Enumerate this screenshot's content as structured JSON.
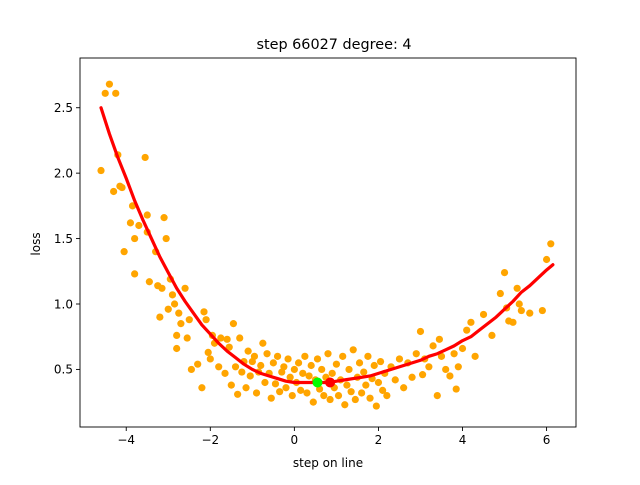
{
  "chart_data": {
    "type": "scatter",
    "title": "step 66027   degree: 4",
    "xlabel": "step on line",
    "ylabel": "loss",
    "xlim": [
      -5.1,
      6.7
    ],
    "ylim": [
      0.06,
      2.88
    ],
    "xticks": [
      -4,
      -2,
      0,
      2,
      4,
      6
    ],
    "yticks": [
      0.5,
      1.0,
      1.5,
      2.0,
      2.5
    ],
    "xtick_labels": [
      "−4",
      "−2",
      "0",
      "2",
      "4",
      "6"
    ],
    "ytick_labels": [
      "0.5",
      "1.0",
      "1.5",
      "2.0",
      "2.5"
    ],
    "grid": false,
    "legend": "none",
    "scatter_color": "#ffa500",
    "scatter_points": [
      [
        -4.6,
        2.02
      ],
      [
        -4.5,
        2.61
      ],
      [
        -4.4,
        2.68
      ],
      [
        -4.25,
        2.61
      ],
      [
        -4.2,
        2.14
      ],
      [
        -4.3,
        1.86
      ],
      [
        -4.15,
        1.9
      ],
      [
        -4.1,
        1.89
      ],
      [
        -4.05,
        1.4
      ],
      [
        -3.9,
        1.62
      ],
      [
        -3.85,
        1.75
      ],
      [
        -3.8,
        1.5
      ],
      [
        -3.8,
        1.23
      ],
      [
        -3.7,
        1.6
      ],
      [
        -3.55,
        2.12
      ],
      [
        -3.5,
        1.68
      ],
      [
        -3.5,
        1.55
      ],
      [
        -3.45,
        1.17
      ],
      [
        -3.3,
        1.4
      ],
      [
        -3.25,
        1.14
      ],
      [
        -3.2,
        0.9
      ],
      [
        -3.15,
        1.12
      ],
      [
        -3.1,
        1.66
      ],
      [
        -3.05,
        1.5
      ],
      [
        -3.0,
        0.96
      ],
      [
        -2.95,
        1.19
      ],
      [
        -2.9,
        1.07
      ],
      [
        -2.85,
        1.0
      ],
      [
        -2.8,
        0.76
      ],
      [
        -2.8,
        0.66
      ],
      [
        -2.75,
        0.93
      ],
      [
        -2.7,
        0.85
      ],
      [
        -2.6,
        1.12
      ],
      [
        -2.55,
        0.74
      ],
      [
        -2.5,
        0.88
      ],
      [
        -2.45,
        0.5
      ],
      [
        -2.3,
        0.54
      ],
      [
        -2.2,
        0.36
      ],
      [
        -2.15,
        0.94
      ],
      [
        -2.1,
        0.88
      ],
      [
        -2.05,
        0.63
      ],
      [
        -2.0,
        0.58
      ],
      [
        -1.95,
        0.76
      ],
      [
        -1.9,
        0.7
      ],
      [
        -1.8,
        0.52
      ],
      [
        -1.75,
        0.74
      ],
      [
        -1.65,
        0.47
      ],
      [
        -1.6,
        0.73
      ],
      [
        -1.55,
        0.67
      ],
      [
        -1.5,
        0.38
      ],
      [
        -1.45,
        0.85
      ],
      [
        -1.4,
        0.52
      ],
      [
        -1.35,
        0.31
      ],
      [
        -1.3,
        0.74
      ],
      [
        -1.25,
        0.48
      ],
      [
        -1.2,
        0.56
      ],
      [
        -1.15,
        0.36
      ],
      [
        -1.1,
        0.64
      ],
      [
        -1.05,
        0.45
      ],
      [
        -1.0,
        0.56
      ],
      [
        -0.95,
        0.6
      ],
      [
        -0.9,
        0.32
      ],
      [
        -0.85,
        0.48
      ],
      [
        -0.8,
        0.53
      ],
      [
        -0.75,
        0.7
      ],
      [
        -0.7,
        0.4
      ],
      [
        -0.65,
        0.62
      ],
      [
        -0.6,
        0.47
      ],
      [
        -0.55,
        0.28
      ],
      [
        -0.5,
        0.55
      ],
      [
        -0.45,
        0.39
      ],
      [
        -0.4,
        0.6
      ],
      [
        -0.35,
        0.33
      ],
      [
        -0.3,
        0.48
      ],
      [
        -0.25,
        0.52
      ],
      [
        -0.2,
        0.36
      ],
      [
        -0.15,
        0.58
      ],
      [
        -0.1,
        0.44
      ],
      [
        -0.05,
        0.3
      ],
      [
        0.0,
        0.5
      ],
      [
        0.05,
        0.4
      ],
      [
        0.1,
        0.55
      ],
      [
        0.15,
        0.34
      ],
      [
        0.2,
        0.47
      ],
      [
        0.25,
        0.6
      ],
      [
        0.3,
        0.32
      ],
      [
        0.35,
        0.45
      ],
      [
        0.4,
        0.53
      ],
      [
        0.45,
        0.25
      ],
      [
        0.5,
        0.42
      ],
      [
        0.55,
        0.58
      ],
      [
        0.6,
        0.35
      ],
      [
        0.65,
        0.5
      ],
      [
        0.7,
        0.3
      ],
      [
        0.75,
        0.44
      ],
      [
        0.8,
        0.62
      ],
      [
        0.85,
        0.27
      ],
      [
        0.9,
        0.47
      ],
      [
        0.95,
        0.36
      ],
      [
        1.0,
        0.54
      ],
      [
        1.05,
        0.3
      ],
      [
        1.1,
        0.42
      ],
      [
        1.15,
        0.6
      ],
      [
        1.2,
        0.23
      ],
      [
        1.25,
        0.38
      ],
      [
        1.3,
        0.5
      ],
      [
        1.35,
        0.33
      ],
      [
        1.4,
        0.65
      ],
      [
        1.45,
        0.27
      ],
      [
        1.5,
        0.44
      ],
      [
        1.55,
        0.55
      ],
      [
        1.6,
        0.32
      ],
      [
        1.65,
        0.48
      ],
      [
        1.7,
        0.38
      ],
      [
        1.75,
        0.6
      ],
      [
        1.8,
        0.28
      ],
      [
        1.85,
        0.43
      ],
      [
        1.9,
        0.53
      ],
      [
        1.95,
        0.22
      ],
      [
        2.0,
        0.4
      ],
      [
        2.05,
        0.56
      ],
      [
        2.1,
        0.34
      ],
      [
        2.15,
        0.47
      ],
      [
        2.2,
        0.3
      ],
      [
        2.3,
        0.52
      ],
      [
        2.4,
        0.42
      ],
      [
        2.5,
        0.58
      ],
      [
        2.6,
        0.36
      ],
      [
        2.7,
        0.55
      ],
      [
        2.8,
        0.44
      ],
      [
        2.9,
        0.62
      ],
      [
        3.0,
        0.79
      ],
      [
        3.05,
        0.46
      ],
      [
        3.1,
        0.58
      ],
      [
        3.2,
        0.52
      ],
      [
        3.3,
        0.68
      ],
      [
        3.4,
        0.3
      ],
      [
        3.45,
        0.73
      ],
      [
        3.5,
        0.6
      ],
      [
        3.6,
        0.5
      ],
      [
        3.7,
        0.45
      ],
      [
        3.8,
        0.62
      ],
      [
        3.85,
        0.35
      ],
      [
        3.9,
        0.52
      ],
      [
        4.0,
        0.66
      ],
      [
        4.1,
        0.8
      ],
      [
        4.2,
        0.86
      ],
      [
        4.3,
        0.6
      ],
      [
        4.5,
        0.92
      ],
      [
        4.7,
        0.76
      ],
      [
        4.9,
        1.08
      ],
      [
        5.0,
        1.24
      ],
      [
        5.05,
        0.97
      ],
      [
        5.1,
        0.87
      ],
      [
        5.2,
        0.86
      ],
      [
        5.3,
        1.12
      ],
      [
        5.35,
        1.0
      ],
      [
        5.4,
        0.95
      ],
      [
        5.6,
        0.93
      ],
      [
        5.9,
        0.95
      ],
      [
        6.0,
        1.34
      ],
      [
        6.1,
        1.46
      ]
    ],
    "fit_curve": {
      "color": "#ff0000",
      "degree": 4,
      "x_range": [
        -4.6,
        6.15
      ],
      "points": [
        [
          -4.6,
          2.5
        ],
        [
          -4.4,
          2.3
        ],
        [
          -4.2,
          2.12
        ],
        [
          -4.0,
          1.96
        ],
        [
          -3.8,
          1.79
        ],
        [
          -3.6,
          1.64
        ],
        [
          -3.4,
          1.5
        ],
        [
          -3.2,
          1.36
        ],
        [
          -3.0,
          1.24
        ],
        [
          -2.8,
          1.12
        ],
        [
          -2.6,
          1.02
        ],
        [
          -2.4,
          0.93
        ],
        [
          -2.2,
          0.84
        ],
        [
          -2.0,
          0.77
        ],
        [
          -1.8,
          0.7
        ],
        [
          -1.6,
          0.64
        ],
        [
          -1.4,
          0.59
        ],
        [
          -1.2,
          0.54
        ],
        [
          -1.0,
          0.5
        ],
        [
          -0.8,
          0.47
        ],
        [
          -0.6,
          0.45
        ],
        [
          -0.4,
          0.43
        ],
        [
          -0.2,
          0.41
        ],
        [
          0.0,
          0.4
        ],
        [
          0.2,
          0.4
        ],
        [
          0.4,
          0.4
        ],
        [
          0.6,
          0.4
        ],
        [
          0.85,
          0.4
        ],
        [
          1.0,
          0.41
        ],
        [
          1.2,
          0.42
        ],
        [
          1.4,
          0.43
        ],
        [
          1.6,
          0.44
        ],
        [
          1.8,
          0.45
        ],
        [
          2.0,
          0.47
        ],
        [
          2.2,
          0.49
        ],
        [
          2.4,
          0.51
        ],
        [
          2.6,
          0.53
        ],
        [
          2.8,
          0.55
        ],
        [
          3.0,
          0.57
        ],
        [
          3.2,
          0.6
        ],
        [
          3.4,
          0.62
        ],
        [
          3.6,
          0.65
        ],
        [
          3.8,
          0.68
        ],
        [
          4.0,
          0.72
        ],
        [
          4.2,
          0.75
        ],
        [
          4.4,
          0.8
        ],
        [
          4.6,
          0.85
        ],
        [
          4.8,
          0.9
        ],
        [
          5.0,
          0.96
        ],
        [
          5.2,
          1.02
        ],
        [
          5.4,
          1.09
        ],
        [
          5.6,
          1.14
        ],
        [
          5.8,
          1.2
        ],
        [
          6.0,
          1.26
        ],
        [
          6.15,
          1.3
        ]
      ]
    },
    "markers": [
      {
        "x": 0.55,
        "y": 0.4,
        "color": "#00ff00"
      },
      {
        "x": 0.85,
        "y": 0.4,
        "color": "#ff0000"
      }
    ]
  }
}
